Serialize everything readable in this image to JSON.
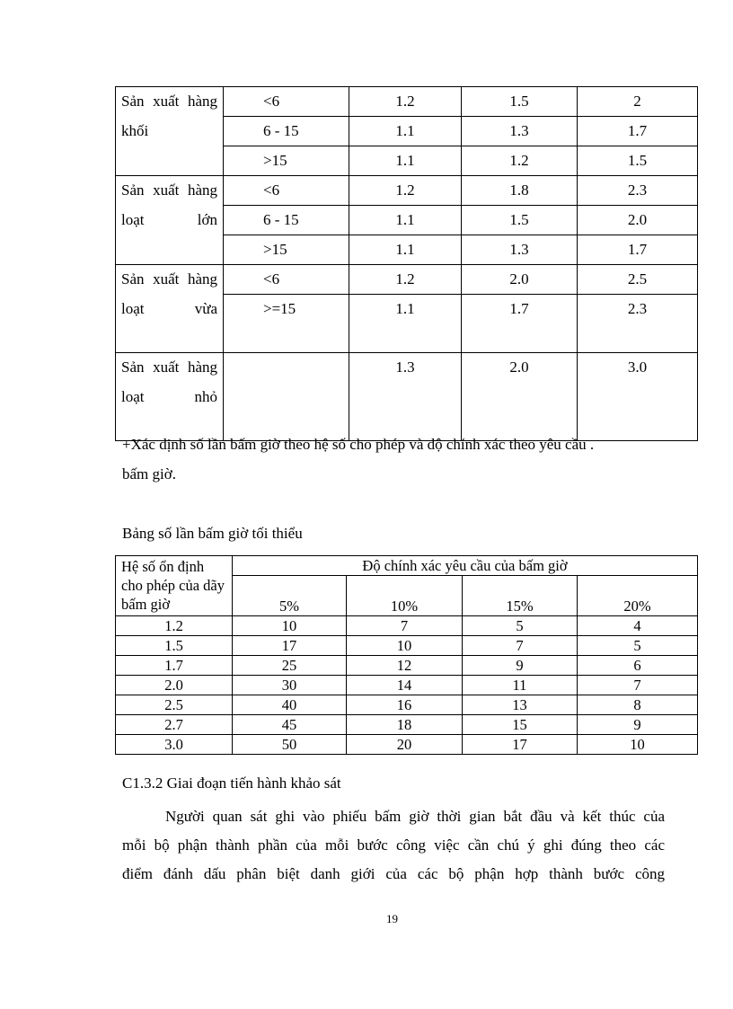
{
  "table1": {
    "groups": [
      {
        "label": "Sản xuất hàng khối",
        "rows": [
          [
            "<6",
            "1.2",
            "1.5",
            "2"
          ],
          [
            "6 - 15",
            "1.1",
            "1.3",
            "1.7"
          ],
          [
            ">15",
            "1.1",
            "1.2",
            "1.5"
          ]
        ]
      },
      {
        "label": "Sản xuất hàng loạt lớn",
        "rows": [
          [
            "<6",
            "1.2",
            "1.8",
            "2.3"
          ],
          [
            "6 - 15",
            "1.1",
            "1.5",
            "2.0"
          ],
          [
            ">15",
            "1.1",
            "1.3",
            "1.7"
          ]
        ]
      },
      {
        "label": "Sản xuất hàng loạt vừa",
        "rows": [
          [
            "<6",
            "1.2",
            "2.0",
            "2.5"
          ],
          [
            ">=15",
            "1.1",
            "1.7",
            "2.3"
          ]
        ]
      },
      {
        "label": "Sản xuất hàng loạt nhỏ",
        "rows": [
          [
            "",
            "1.3",
            "2.0",
            "3.0"
          ]
        ]
      }
    ]
  },
  "note_line1": "+Xác định số lần bấm giờ theo hệ số cho phép và độ chính xác theo yêu cầu .",
  "note_line2": "bấm giờ.",
  "table2": {
    "caption": "Bảng số lần bấm giờ tối thiểu",
    "row_header": "Hệ số ổn định cho phép của dãy bấm giờ",
    "group_header": "Độ chính xác yêu cầu của bấm giờ",
    "columns": [
      "5%",
      "10%",
      "15%",
      "20%"
    ],
    "rows": [
      [
        "1.2",
        "10",
        "7",
        "5",
        "4"
      ],
      [
        "1.5",
        "17",
        "10",
        "7",
        "5"
      ],
      [
        "1.7",
        "25",
        "12",
        "9",
        "6"
      ],
      [
        "2.0",
        "30",
        "14",
        "11",
        "7"
      ],
      [
        "2.5",
        "40",
        "16",
        "13",
        "8"
      ],
      [
        "2.7",
        "45",
        "18",
        "15",
        "9"
      ],
      [
        "3.0",
        "50",
        "20",
        "17",
        "10"
      ]
    ]
  },
  "section_heading": "C1.3.2 Giai  đoạn tiến hành khảo sát",
  "paragraph_lines": [
    "Người quan sát ghi vào phiếu bấm giờ thời gian bắt đầu và kết thúc của",
    "mỗi bộ phận thành phần của mỗi bước công việc cần chú ý ghi đúng theo các",
    "điểm đánh dấu phân biệt danh giới của các bộ phận hợp thành bước công"
  ],
  "page_number": "19"
}
